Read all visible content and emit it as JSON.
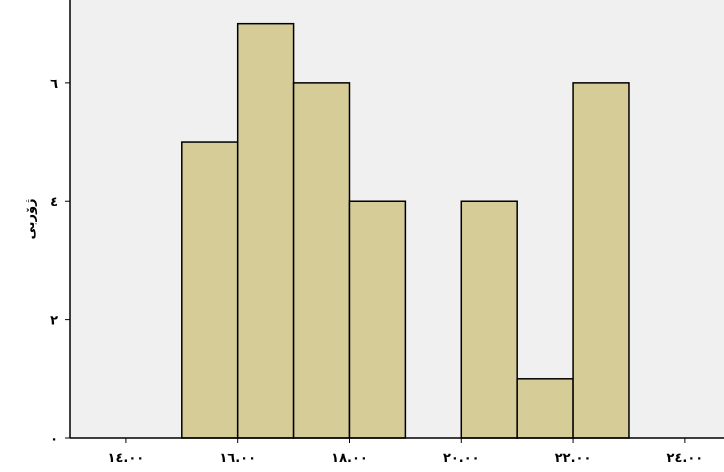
{
  "chart_data": {
    "type": "bar",
    "title": "",
    "xlabel": "",
    "ylabel": "ژۆربی",
    "bins": [
      {
        "x0": 15.0,
        "x1": 16.0,
        "value": 5
      },
      {
        "x0": 16.0,
        "x1": 17.0,
        "value": 7
      },
      {
        "x0": 17.0,
        "x1": 18.0,
        "value": 6
      },
      {
        "x0": 18.0,
        "x1": 19.0,
        "value": 4
      },
      {
        "x0": 19.0,
        "x1": 20.0,
        "value": 0
      },
      {
        "x0": 20.0,
        "x1": 21.0,
        "value": 4
      },
      {
        "x0": 21.0,
        "x1": 22.0,
        "value": 1
      },
      {
        "x0": 22.0,
        "x1": 23.0,
        "value": 6
      }
    ],
    "xlim": [
      13.0,
      24.7
    ],
    "ylim": [
      0,
      7.4
    ],
    "x_ticks": [
      {
        "value": 14,
        "label": "١٤.٠٠"
      },
      {
        "value": 16,
        "label": "١٦.٠٠"
      },
      {
        "value": 18,
        "label": "١٨.٠٠"
      },
      {
        "value": 20,
        "label": "٢٠.٠٠"
      },
      {
        "value": 22,
        "label": "٢٢.٠٠"
      },
      {
        "value": 24,
        "label": "٢٤.٠٠"
      }
    ],
    "y_ticks": [
      {
        "value": 0,
        "label": "٠"
      },
      {
        "value": 2,
        "label": "٢"
      },
      {
        "value": 4,
        "label": "٤"
      },
      {
        "value": 6,
        "label": "٦"
      }
    ],
    "colors": {
      "plot_bg": "#f0f0f0",
      "bar_fill": "#d6cc98",
      "bar_stroke": "#000000",
      "axis": "#000000"
    }
  }
}
